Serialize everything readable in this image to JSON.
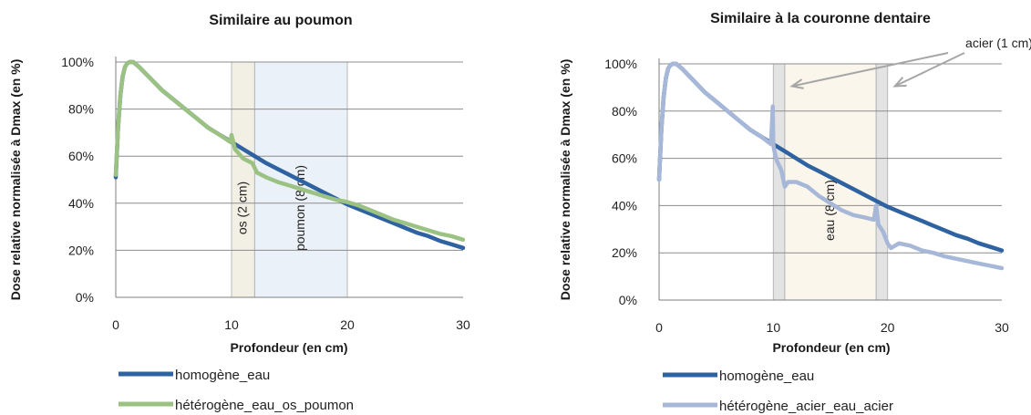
{
  "chart_data": [
    {
      "type": "line",
      "title": "Similaire au poumon",
      "xlabel": "Profondeur (en cm)",
      "ylabel": "Dose relative normalisée à Dmax (en %)",
      "xlim": [
        0,
        30
      ],
      "ylim": [
        0,
        100
      ],
      "x_ticks": [
        "0",
        "10",
        "20",
        "30"
      ],
      "y_ticks": [
        "0%",
        "20%",
        "40%",
        "60%",
        "80%",
        "100%"
      ],
      "grid": "horizontal",
      "legend_position": "bottom",
      "regions": [
        {
          "x0": 10,
          "x1": 12,
          "label": "os  (2 cm)",
          "color": "#e8e2cf"
        },
        {
          "x0": 12,
          "x1": 20,
          "label": "poumon  (8 cm)",
          "color": "#d9e6f3"
        }
      ],
      "series": [
        {
          "name": "homogène_eau",
          "color": "#2e62a0",
          "x": [
            0,
            0.2,
            0.4,
            0.6,
            0.8,
            1.0,
            1.2,
            1.5,
            2,
            3,
            4,
            5,
            6,
            7,
            8,
            9,
            10,
            11,
            12,
            13,
            14,
            15,
            16,
            17,
            18,
            19,
            20,
            21,
            22,
            23,
            24,
            25,
            26,
            27,
            28,
            29,
            30
          ],
          "values": [
            51,
            72,
            86,
            94,
            98,
            99.5,
            100,
            100,
            98,
            93,
            88,
            84,
            80,
            76,
            72,
            69,
            66,
            63,
            60,
            57,
            54.5,
            52,
            49.5,
            47,
            44.5,
            42,
            39.5,
            37.5,
            35.5,
            33.5,
            31.5,
            29.5,
            27.5,
            26,
            24,
            22.5,
            21
          ]
        },
        {
          "name": "hétérogène_eau_os_poumon",
          "color": "#9bc283",
          "x": [
            0,
            0.2,
            0.4,
            0.6,
            0.8,
            1.0,
            1.2,
            1.5,
            2,
            3,
            4,
            5,
            6,
            7,
            8,
            9,
            9.9,
            10.0,
            10.3,
            11,
            11.8,
            12.2,
            13,
            14,
            15,
            16,
            17,
            18,
            19,
            20,
            21,
            22,
            23,
            24,
            25,
            26,
            27,
            28,
            29,
            30
          ],
          "values": [
            52,
            72,
            86,
            94,
            98,
            99.5,
            100,
            100,
            98,
            93,
            88,
            84,
            80,
            76,
            72,
            69,
            66,
            69,
            63,
            59,
            57,
            53,
            51,
            49,
            47.5,
            46,
            44.5,
            43,
            41.5,
            40.5,
            39,
            37,
            35,
            33,
            31.5,
            30,
            28.5,
            27,
            26,
            24.5
          ]
        }
      ]
    },
    {
      "type": "line",
      "title": "Similaire à la couronne dentaire",
      "xlabel": "Profondeur (en cm)",
      "ylabel": "Dose relative normalisée à Dmax (en %)",
      "xlim": [
        0,
        30
      ],
      "ylim": [
        0,
        100
      ],
      "x_ticks": [
        "0",
        "10",
        "20",
        "30"
      ],
      "y_ticks": [
        "0%",
        "20%",
        "40%",
        "60%",
        "80%",
        "100%"
      ],
      "grid": "horizontal",
      "legend_position": "bottom",
      "regions": [
        {
          "x0": 10,
          "x1": 11,
          "label": "",
          "color": "#cccccc"
        },
        {
          "x0": 11,
          "x1": 19,
          "label": "eau  (8 cm)",
          "color": "#f6efdd"
        },
        {
          "x0": 19,
          "x1": 20,
          "label": "",
          "color": "#cccccc"
        }
      ],
      "annotation": {
        "text": "acier (1 cm)",
        "targets_x": [
          11,
          20
        ]
      },
      "series": [
        {
          "name": "homogène_eau",
          "color": "#2e62a0",
          "x": [
            0,
            0.2,
            0.4,
            0.6,
            0.8,
            1.0,
            1.2,
            1.5,
            2,
            3,
            4,
            5,
            6,
            7,
            8,
            9,
            10,
            11,
            12,
            13,
            14,
            15,
            16,
            17,
            18,
            19,
            20,
            21,
            22,
            23,
            24,
            25,
            26,
            27,
            28,
            29,
            30
          ],
          "values": [
            51,
            72,
            86,
            94,
            98,
            99.5,
            100,
            100,
            98,
            93,
            88,
            84,
            80,
            76,
            72,
            69,
            66,
            63,
            60,
            57,
            54.5,
            52,
            49.5,
            47,
            44.5,
            42,
            39.5,
            37.5,
            35.5,
            33.5,
            31.5,
            29.5,
            27.5,
            26,
            24,
            22.5,
            21
          ]
        },
        {
          "name": "hétérogène_acier_eau_acier",
          "color": "#a7b7d8",
          "x": [
            0,
            0.2,
            0.4,
            0.6,
            0.8,
            1.0,
            1.2,
            1.5,
            2,
            3,
            4,
            5,
            6,
            7,
            8,
            9,
            9.8,
            9.95,
            10.0,
            10.05,
            10.3,
            10.7,
            11,
            11.3,
            12,
            13,
            14,
            15,
            16,
            17,
            18,
            18.8,
            19.0,
            19.2,
            19.6,
            20.0,
            20.3,
            21,
            22,
            23,
            24,
            25,
            26,
            27,
            28,
            29,
            30
          ],
          "values": [
            51,
            72,
            86,
            94,
            98,
            99.5,
            100,
            100,
            98,
            93,
            88,
            84,
            80,
            76,
            72,
            69,
            66,
            82,
            66,
            64,
            59,
            55,
            48,
            50,
            50,
            48,
            44,
            41,
            38,
            36,
            35,
            34,
            40,
            32,
            29,
            24,
            22,
            24,
            23,
            21,
            20,
            18.5,
            17.5,
            16.5,
            15.5,
            14.5,
            13.5
          ]
        }
      ]
    }
  ]
}
